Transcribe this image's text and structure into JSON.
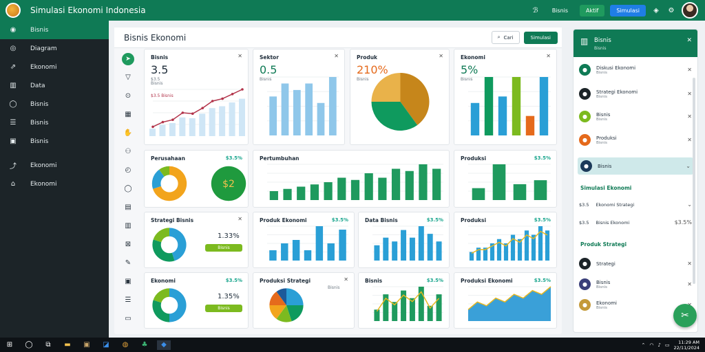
{
  "app": {
    "title": "Simulasi Ekonomi Indonesia"
  },
  "topbar": {
    "btn1": "Bisnis",
    "btn2": "Aktif",
    "btn3": "Simulasi"
  },
  "sidebar": {
    "items": [
      {
        "label": "Bisnis",
        "icon": "dashboard-icon"
      },
      {
        "label": "Diagram",
        "icon": "chart-icon"
      },
      {
        "label": "Ekonomi",
        "icon": "growth-icon"
      },
      {
        "label": "Data",
        "icon": "bars-icon"
      },
      {
        "label": "Bisnis",
        "icon": "chat-icon"
      },
      {
        "label": "Bisnis",
        "icon": "list-icon"
      },
      {
        "label": "Bisnis",
        "icon": "document-icon"
      },
      {
        "label": "Ekonomi",
        "icon": "trend-icon"
      },
      {
        "label": "Ekonomi",
        "icon": "bank-icon"
      }
    ]
  },
  "main": {
    "title": "Bisnis Ekonomi",
    "search_label": "Cari",
    "action_label": "Simulasi"
  },
  "cards": {
    "c1": {
      "title": "Bisnis",
      "value": "3.5",
      "sub": "$3.5",
      "sub2": "Bisnis",
      "legend": "$3.5 Bisnis"
    },
    "c2": {
      "title": "Sektor",
      "value": "0.5",
      "sub": "Bisnis"
    },
    "c3": {
      "title": "Produk",
      "value": "210%",
      "sub": "Bisnis"
    },
    "c4": {
      "title": "Ekonomi",
      "value": "5%",
      "sub": "Bisnis"
    },
    "c5": {
      "title": "Perusahaan",
      "tag": "$3.5%",
      "center": "$2"
    },
    "c6": {
      "title": "Pertumbuhan",
      "tag": ""
    },
    "c7": {
      "title": "Produksi",
      "tag": "$3.5%"
    },
    "c8": {
      "title": "Strategi Bisnis",
      "pct": "1.33%",
      "btn": "Bisnis"
    },
    "c9": {
      "title": "Produk Ekonomi",
      "tag": "$3.5%"
    },
    "c10": {
      "title": "Data Bisnis",
      "tag": "$3.5%"
    },
    "c11": {
      "title": "Produksi",
      "tag": "$3.5%"
    },
    "c12": {
      "title": "Ekonomi",
      "tag": "$3.5%",
      "pct": "1.35%",
      "btn": "Bisnis"
    },
    "c13": {
      "title": "Produksi Strategi",
      "legend": "Bisnis"
    },
    "c14": {
      "title": "Bisnis",
      "tag": "$3.5%"
    },
    "c15": {
      "title": "Produksi Ekonomi",
      "tag": "$3.5%"
    }
  },
  "rpanel": {
    "title": "Bisnis",
    "subtitle": "Bisnis",
    "rows": [
      {
        "t": "Diskusi Ekonomi",
        "s": "Bisnis",
        "color": "#0f7a55"
      },
      {
        "t": "Strategi Ekonomi",
        "s": "Bisnis",
        "color": "#1c2428"
      },
      {
        "t": "Bisnis",
        "s": "Bisnis",
        "color": "#7cba1f"
      },
      {
        "t": "Produksi",
        "s": "Bisnis",
        "color": "#e56a1c"
      },
      {
        "t": "Bisnis",
        "s": "",
        "color": "#1c3a5a"
      }
    ],
    "section1": "Simulasi Ekonomi",
    "row_a": {
      "left": "$3.5",
      "t": "Ekonomi Strategi"
    },
    "row_b": {
      "left": "$3.5",
      "t": "Bisnis Ekonomi",
      "right": "$3.5%"
    },
    "section2": "Produk Strategi",
    "rows2": [
      {
        "t": "Strategi",
        "s": "",
        "color": "#1c2428"
      },
      {
        "t": "Bisnis",
        "s": "Bisnis",
        "color": "#3a3f7a"
      },
      {
        "t": "Ekonomi",
        "s": "Bisnis",
        "color": "#c49a3a"
      }
    ]
  },
  "taskbar": {
    "time": "11:29 AM",
    "date": "22/11/2024"
  },
  "chart_data": [
    {
      "type": "line",
      "card": "c1",
      "values": [
        2,
        3,
        3.5,
        5,
        4.8,
        6,
        7.5,
        8,
        9,
        10
      ]
    },
    {
      "type": "bar",
      "card": "c2",
      "values": [
        6,
        8,
        7,
        8,
        5,
        9
      ]
    },
    {
      "type": "pie",
      "card": "c3",
      "values": [
        40,
        35,
        25
      ]
    },
    {
      "type": "bar",
      "card": "c4",
      "values": [
        5,
        9,
        6,
        9,
        3,
        9
      ]
    },
    {
      "type": "pie",
      "card": "c5",
      "values": [
        70,
        20,
        10
      ]
    },
    {
      "type": "bar",
      "card": "c6",
      "values": [
        2,
        2.5,
        3,
        3.5,
        4,
        5,
        4.5,
        6,
        5,
        7,
        6.5,
        8,
        7
      ]
    },
    {
      "type": "bar",
      "card": "c7",
      "values": [
        3,
        9,
        4,
        5
      ]
    },
    {
      "type": "pie",
      "card": "c8",
      "values": [
        45,
        35,
        20
      ]
    },
    {
      "type": "bar",
      "card": "c9",
      "values": [
        3,
        5,
        6,
        3,
        10,
        5,
        9
      ]
    },
    {
      "type": "bar",
      "card": "c10",
      "values": [
        4,
        6,
        5,
        8,
        6,
        9,
        7,
        5
      ]
    },
    {
      "type": "bar",
      "card": "c11",
      "values": [
        2,
        3,
        3,
        4,
        5,
        4,
        6,
        5,
        7,
        6,
        8,
        7
      ]
    },
    {
      "type": "pie",
      "card": "c12",
      "values": [
        50,
        30,
        20
      ]
    },
    {
      "type": "pie",
      "card": "c13",
      "values": [
        25,
        20,
        15,
        15,
        15,
        10
      ]
    },
    {
      "type": "bar",
      "card": "c14",
      "values": [
        3,
        7,
        5,
        8,
        6,
        9,
        4,
        7
      ]
    },
    {
      "type": "area",
      "card": "c15",
      "values": [
        3,
        5,
        4,
        6,
        5,
        7,
        6,
        8,
        7,
        9
      ]
    }
  ]
}
